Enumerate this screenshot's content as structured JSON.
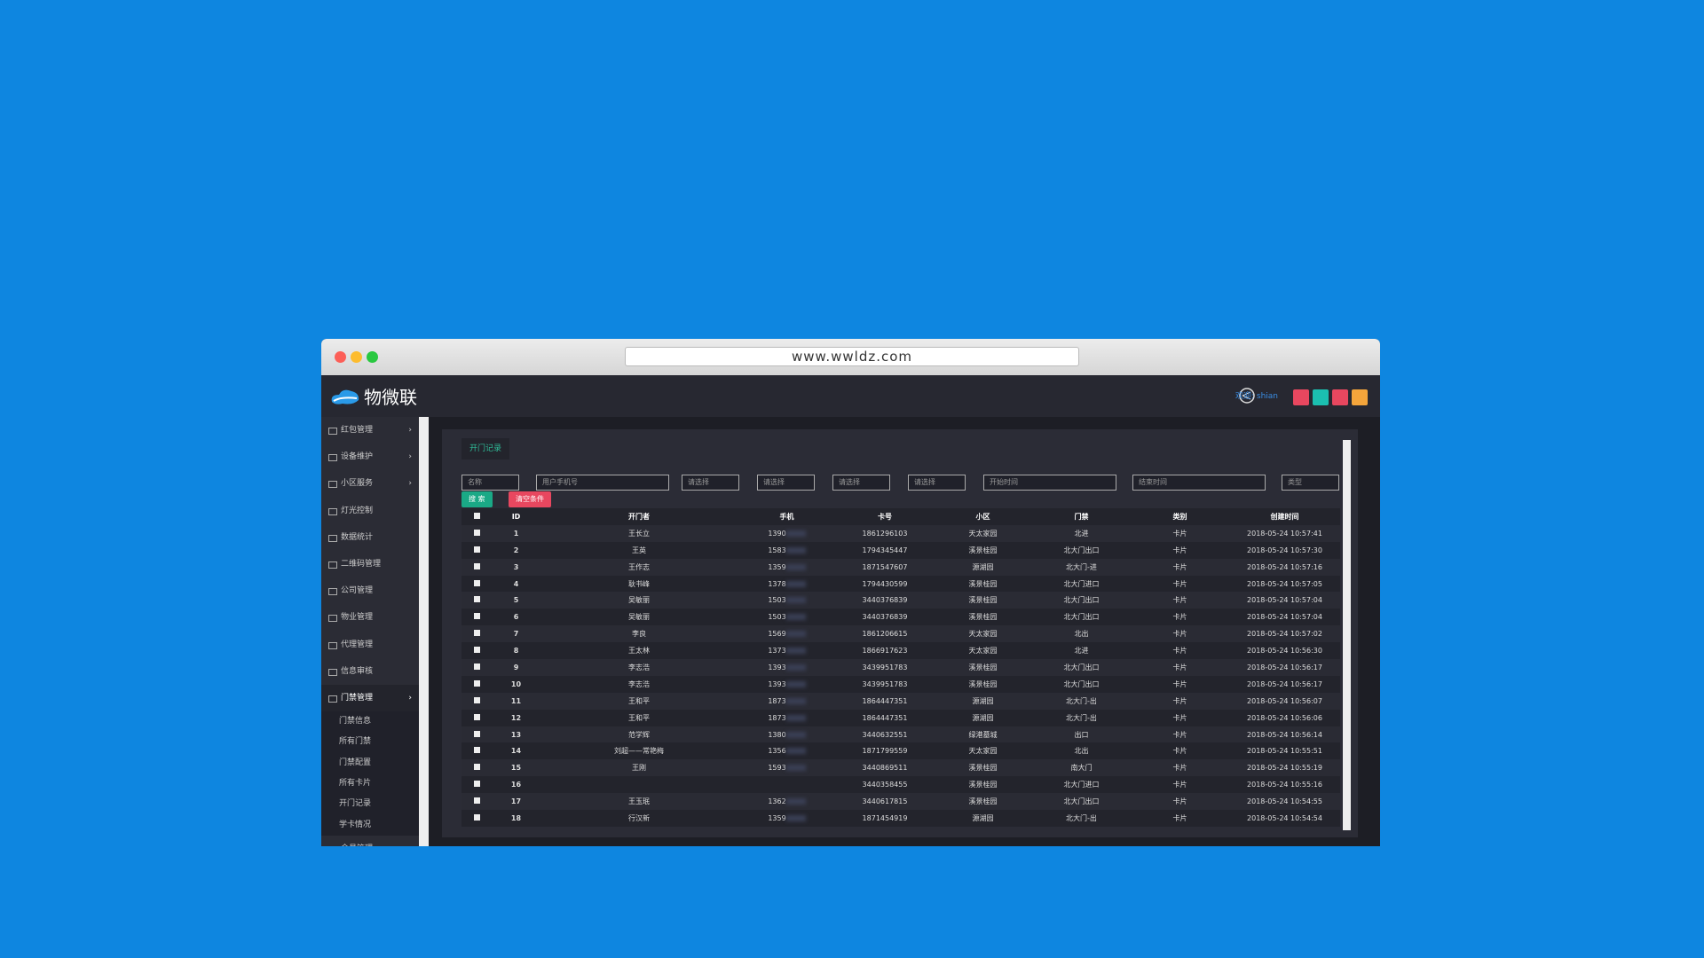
{
  "browser": {
    "url": "www.wwldz.com"
  },
  "header": {
    "logo": "物微联",
    "welcome": "欢迎: shian"
  },
  "sidebar": {
    "items": [
      "红包管理",
      "设备维护",
      "小区服务",
      "灯光控制",
      "数据统计",
      "二维码管理",
      "公司管理",
      "物业管理",
      "代理管理",
      "信息审核",
      "门禁管理"
    ],
    "sub_items": [
      "门禁信息",
      "所有门禁",
      "门禁配置",
      "所有卡片",
      "开门记录",
      "学卡情况"
    ],
    "next_item": "会员管理"
  },
  "tab": "开门记录",
  "filters": {
    "fields": [
      "名称",
      "用户手机号",
      "请选择",
      "请选择",
      "请选择",
      "请选择",
      "开始时间",
      "结束时间",
      "类型"
    ],
    "search": "搜 索",
    "clear": "清空条件"
  },
  "table": {
    "columns": [
      "ID",
      "开门者",
      "手机",
      "卡号",
      "小区",
      "门禁",
      "类别",
      "创建时间"
    ],
    "rows": [
      [
        1,
        "王长立",
        "1390",
        "1861296103",
        "天太家园",
        "北进",
        "卡片",
        "2018-05-24 10:57:41"
      ],
      [
        2,
        "王英",
        "1583",
        "1794345447",
        "溪景桂园",
        "北大门出口",
        "卡片",
        "2018-05-24 10:57:30"
      ],
      [
        3,
        "王作志",
        "1359",
        "1871547607",
        "源湖园",
        "北大门-进",
        "卡片",
        "2018-05-24 10:57:16"
      ],
      [
        4,
        "耿书峰",
        "1378",
        "1794430599",
        "溪景桂园",
        "北大门进口",
        "卡片",
        "2018-05-24 10:57:05"
      ],
      [
        5,
        "吴敏丽",
        "1503",
        "3440376839",
        "溪景桂园",
        "北大门出口",
        "卡片",
        "2018-05-24 10:57:04"
      ],
      [
        6,
        "吴敏丽",
        "1503",
        "3440376839",
        "溪景桂园",
        "北大门出口",
        "卡片",
        "2018-05-24 10:57:04"
      ],
      [
        7,
        "李良",
        "1569",
        "1861206615",
        "天太家园",
        "北出",
        "卡片",
        "2018-05-24 10:57:02"
      ],
      [
        8,
        "王太林",
        "1373",
        "1866917623",
        "天太家园",
        "北进",
        "卡片",
        "2018-05-24 10:56:30"
      ],
      [
        9,
        "李志浩",
        "1393",
        "3439951783",
        "溪景桂园",
        "北大门出口",
        "卡片",
        "2018-05-24 10:56:17"
      ],
      [
        10,
        "李志浩",
        "1393",
        "3439951783",
        "溪景桂园",
        "北大门出口",
        "卡片",
        "2018-05-24 10:56:17"
      ],
      [
        11,
        "王和平",
        "1873",
        "1864447351",
        "源湖园",
        "北大门-出",
        "卡片",
        "2018-05-24 10:56:07"
      ],
      [
        12,
        "王和平",
        "1873",
        "1864447351",
        "源湖园",
        "北大门-出",
        "卡片",
        "2018-05-24 10:56:06"
      ],
      [
        13,
        "范学辉",
        "1380",
        "3440632551",
        "绿港墓城",
        "出口",
        "卡片",
        "2018-05-24 10:56:14"
      ],
      [
        14,
        "刘超——常艳梅",
        "1356",
        "1871799559",
        "天太家园",
        "北出",
        "卡片",
        "2018-05-24 10:55:51"
      ],
      [
        15,
        "王刚",
        "1593",
        "3440869511",
        "溪景桂园",
        "南大门",
        "卡片",
        "2018-05-24 10:55:19"
      ],
      [
        16,
        null,
        null,
        "3440358455",
        "溪景桂园",
        "北大门进口",
        "卡片",
        "2018-05-24 10:55:16"
      ],
      [
        17,
        "王玉珉",
        "1362",
        "3440617815",
        "溪景桂园",
        "北大门出口",
        "卡片",
        "2018-05-24 10:54:55"
      ],
      [
        18,
        "行汉新",
        "1359",
        "1871454919",
        "源湖园",
        "北大门-出",
        "卡片",
        "2018-05-24 10:54:54"
      ]
    ]
  }
}
